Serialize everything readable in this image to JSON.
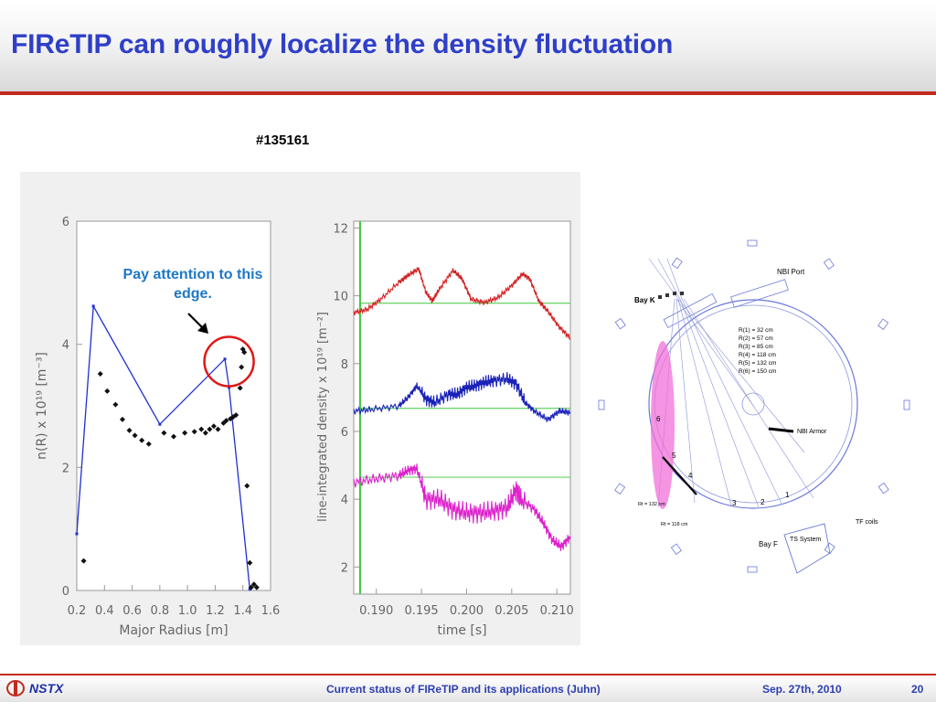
{
  "slide": {
    "title": "FIReTIP can roughly localize the density fluctuation",
    "shot_number": "#135161",
    "annotation": "Pay attention to this edge."
  },
  "footer": {
    "logo_text": "NSTX",
    "center_text": "Current status of FIReTIP and its applications (Juhn)",
    "date": "Sep. 27th, 2010",
    "page_number": "20"
  },
  "colors": {
    "title": "#2f3fc8",
    "accent_rule": "#c22a1f",
    "profile_line": "#1f2fd0",
    "highlight_circle": "#e01818",
    "annotation": "#1e78c8",
    "series_top": "#d42020",
    "series_mid": "#1a22b8",
    "series_bottom": "#dd22cc",
    "reference_lines": "#3cc83c"
  },
  "chart_data": [
    {
      "type": "line",
      "xlabel": "Major Radius [m]",
      "ylabel": "n(R) x 10¹⁹ [m⁻³]",
      "xlim": [
        0.2,
        1.6
      ],
      "ylim": [
        0,
        6
      ],
      "xticks": [
        "0.2",
        "0.4",
        "0.6",
        "0.8",
        "1.0",
        "1.2",
        "1.4",
        "1.6"
      ],
      "yticks": [
        "0",
        "2",
        "4",
        "6"
      ],
      "series": [
        {
          "style": "line",
          "points": [
            [
              0.2,
              0.92
            ],
            [
              0.32,
              4.62
            ],
            [
              0.8,
              2.7
            ],
            [
              1.27,
              3.76
            ],
            [
              1.3,
              3.3
            ],
            [
              1.45,
              0.02
            ]
          ]
        },
        {
          "style": "markers",
          "points": [
            [
              0.25,
              0.48
            ],
            [
              0.37,
              3.52
            ],
            [
              0.42,
              3.24
            ],
            [
              0.48,
              3.02
            ],
            [
              0.53,
              2.78
            ],
            [
              0.58,
              2.6
            ],
            [
              0.62,
              2.52
            ],
            [
              0.67,
              2.44
            ],
            [
              0.72,
              2.38
            ],
            [
              0.83,
              2.56
            ],
            [
              0.9,
              2.5
            ],
            [
              0.98,
              2.56
            ],
            [
              1.05,
              2.58
            ],
            [
              1.1,
              2.62
            ],
            [
              1.13,
              2.56
            ],
            [
              1.16,
              2.62
            ],
            [
              1.19,
              2.67
            ],
            [
              1.22,
              2.62
            ],
            [
              1.26,
              2.72
            ],
            [
              1.28,
              2.76
            ],
            [
              1.31,
              2.79
            ],
            [
              1.33,
              2.82
            ],
            [
              1.35,
              2.85
            ],
            [
              1.38,
              3.29
            ],
            [
              1.39,
              3.63
            ],
            [
              1.4,
              3.92
            ],
            [
              1.41,
              3.87
            ],
            [
              1.43,
              1.7
            ],
            [
              1.45,
              0.45
            ],
            [
              1.46,
              0.05
            ],
            [
              1.48,
              0.1
            ],
            [
              1.5,
              0.05
            ]
          ]
        }
      ]
    },
    {
      "type": "line",
      "xlabel": "time [s]",
      "ylabel": "line-integrated density x 10¹⁹ [m⁻²]",
      "xlim": [
        0.1875,
        0.2115
      ],
      "ylim": [
        1.2,
        12.2
      ],
      "xticks": [
        "0.190",
        "0.195",
        "0.200",
        "0.205",
        "0.210"
      ],
      "yticks": [
        "2",
        "4",
        "6",
        "8",
        "10",
        "12"
      ],
      "vertical_marker": 0.1882,
      "reference_levels": [
        9.78,
        6.68,
        4.65
      ],
      "series": [
        {
          "color": "series_top",
          "points": [
            [
              0.1875,
              9.5
            ],
            [
              0.189,
              9.6
            ],
            [
              0.1905,
              9.9
            ],
            [
              0.1925,
              10.4
            ],
            [
              0.1935,
              10.6
            ],
            [
              0.1947,
              10.8
            ],
            [
              0.1955,
              10.1
            ],
            [
              0.1962,
              9.85
            ],
            [
              0.197,
              10.2
            ],
            [
              0.1985,
              10.75
            ],
            [
              0.1995,
              10.5
            ],
            [
              0.2005,
              9.9
            ],
            [
              0.202,
              9.8
            ],
            [
              0.2035,
              9.95
            ],
            [
              0.205,
              10.3
            ],
            [
              0.2062,
              10.65
            ],
            [
              0.207,
              10.5
            ],
            [
              0.208,
              9.85
            ],
            [
              0.209,
              9.55
            ],
            [
              0.2102,
              9.1
            ],
            [
              0.2115,
              8.75
            ]
          ]
        },
        {
          "color": "series_mid",
          "points": [
            [
              0.1875,
              6.6
            ],
            [
              0.1895,
              6.65
            ],
            [
              0.1925,
              6.75
            ],
            [
              0.1935,
              7.0
            ],
            [
              0.1945,
              7.35
            ],
            [
              0.1955,
              6.95
            ],
            [
              0.1965,
              6.85
            ],
            [
              0.198,
              7.1
            ],
            [
              0.199,
              7.1
            ],
            [
              0.2,
              7.3
            ],
            [
              0.201,
              7.35
            ],
            [
              0.202,
              7.45
            ],
            [
              0.203,
              7.5
            ],
            [
              0.2045,
              7.55
            ],
            [
              0.2055,
              7.4
            ],
            [
              0.2065,
              6.85
            ],
            [
              0.2075,
              6.6
            ],
            [
              0.209,
              6.35
            ],
            [
              0.2103,
              6.6
            ],
            [
              0.2115,
              6.55
            ]
          ]
        },
        {
          "color": "series_bottom",
          "points": [
            [
              0.1875,
              4.5
            ],
            [
              0.19,
              4.6
            ],
            [
              0.1925,
              4.7
            ],
            [
              0.1935,
              4.85
            ],
            [
              0.1945,
              4.9
            ],
            [
              0.1955,
              4.0
            ],
            [
              0.197,
              4.0
            ],
            [
              0.1985,
              3.7
            ],
            [
              0.2,
              3.6
            ],
            [
              0.2015,
              3.6
            ],
            [
              0.203,
              3.65
            ],
            [
              0.2045,
              3.75
            ],
            [
              0.2055,
              4.3
            ],
            [
              0.206,
              4.0
            ],
            [
              0.2075,
              3.7
            ],
            [
              0.2085,
              3.3
            ],
            [
              0.2095,
              2.8
            ],
            [
              0.2105,
              2.6
            ],
            [
              0.2115,
              2.9
            ]
          ]
        }
      ]
    }
  ],
  "diagram": {
    "bay_k": "Bay K",
    "nbi_port": "NBI Port",
    "radii": [
      "R(1) = 32 cm",
      "R(2) = 57 cm",
      "R(3) = 85 cm",
      "R(4) = 118 cm",
      "R(5) = 132 cm",
      "R(6) = 150 cm"
    ],
    "nbi_armor": "NBI Armor",
    "chord_numbers": [
      "1",
      "2",
      "3",
      "4",
      "5",
      "6"
    ],
    "rt132": "Rt = 132 cm",
    "rt118": "Rt = 118 cm",
    "bay_f": "Bay F",
    "ts_system": "TS System",
    "tf_coils": "TF coils"
  }
}
